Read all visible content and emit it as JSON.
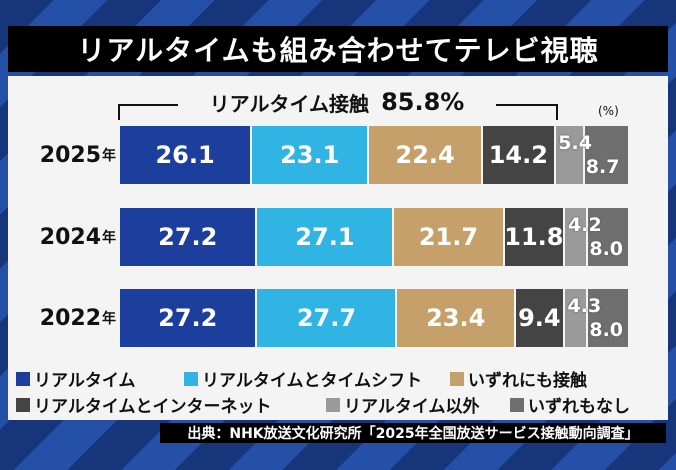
{
  "title": "リアルタイムも組み合わせてテレビ視聴",
  "bracket": {
    "label": "リアルタイム接触",
    "value": "85.8%"
  },
  "unit": "(%)",
  "year_suffix": "年",
  "source": "出典：NHK放送文化研究所「2025年全国放送サービス接触動向調査」",
  "colors": {
    "realtime": "#1c3f9e",
    "timeshift": "#2fb4e3",
    "either": "#c5a06a",
    "internet": "#444444",
    "other": "#9a9a9a",
    "none": "#6f6f6f"
  },
  "chart_data": {
    "type": "bar",
    "orientation": "horizontal-stacked-100",
    "categories": [
      "2025",
      "2024",
      "2022"
    ],
    "series": [
      {
        "name": "リアルタイム",
        "values": [
          26.1,
          27.2,
          27.2
        ],
        "color": "#1c3f9e"
      },
      {
        "name": "リアルタイムとタイムシフト",
        "values": [
          23.1,
          27.1,
          27.7
        ],
        "color": "#2fb4e3"
      },
      {
        "name": "いずれにも接触",
        "values": [
          22.4,
          21.7,
          23.4
        ],
        "color": "#c5a06a"
      },
      {
        "name": "リアルタイムとインターネット",
        "values": [
          14.2,
          11.8,
          9.4
        ],
        "color": "#444444"
      },
      {
        "name": "リアルタイム以外",
        "values": [
          5.4,
          4.2,
          4.3
        ],
        "color": "#9a9a9a"
      },
      {
        "name": "いずれもなし",
        "values": [
          8.7,
          8.0,
          8.0
        ],
        "color": "#6f6f6f"
      }
    ],
    "value_labels": [
      [
        "26.1",
        "23.1",
        "22.4",
        "14.2",
        "5.4",
        "8.7"
      ],
      [
        "27.2",
        "27.1",
        "21.7",
        "11.8",
        "4.2",
        "8.0"
      ],
      [
        "27.2",
        "27.7",
        "23.4",
        "9.4",
        "4.3",
        "8.0"
      ]
    ],
    "legend_position": "bottom"
  }
}
